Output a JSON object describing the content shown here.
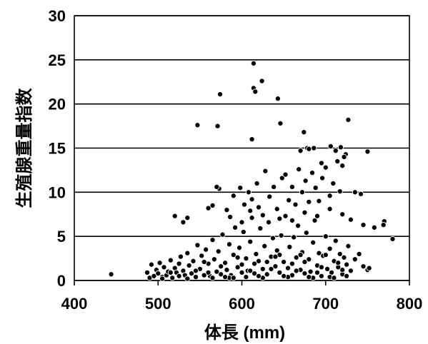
{
  "chart_data": {
    "type": "scatter",
    "title": "",
    "xlabel": "体長 (mm)",
    "ylabel": "生殖腺重量指数",
    "xlim": [
      400,
      800
    ],
    "ylim": [
      0,
      30
    ],
    "x_ticks": [
      "400",
      "500",
      "600",
      "700",
      "800"
    ],
    "y_ticks": [
      "0",
      "5",
      "10",
      "15",
      "20",
      "25",
      "30"
    ],
    "grid": "horizontal",
    "legend": "none",
    "marker_color": "#000000",
    "series": [
      {
        "points": [
          [
            444,
            0.7
          ],
          [
            487,
            0.9
          ],
          [
            490,
            0.3
          ],
          [
            492,
            1.8
          ],
          [
            495,
            0.5
          ],
          [
            498,
            1.2
          ],
          [
            500,
            0.8
          ],
          [
            502,
            2.0
          ],
          [
            505,
            0.4
          ],
          [
            507,
            1.5
          ],
          [
            510,
            0.6
          ],
          [
            512,
            1.0
          ],
          [
            515,
            2.3
          ],
          [
            517,
            0.3
          ],
          [
            520,
            1.4
          ],
          [
            522,
            0.9
          ],
          [
            525,
            0.5
          ],
          [
            527,
            2.7
          ],
          [
            530,
            1.1
          ],
          [
            532,
            0.6
          ],
          [
            535,
            3.1
          ],
          [
            537,
            1.7
          ],
          [
            540,
            0.8
          ],
          [
            542,
            2.2
          ],
          [
            545,
            0.4
          ],
          [
            547,
            4.0
          ],
          [
            550,
            1.3
          ],
          [
            552,
            2.8
          ],
          [
            555,
            0.6
          ],
          [
            557,
            3.5
          ],
          [
            560,
            1.9
          ],
          [
            562,
            0.5
          ],
          [
            565,
            4.6
          ],
          [
            567,
            2.4
          ],
          [
            570,
            1.0
          ],
          [
            572,
            3.3
          ],
          [
            575,
            0.7
          ],
          [
            577,
            5.2
          ],
          [
            580,
            2.0
          ],
          [
            582,
            1.2
          ],
          [
            585,
            4.1
          ],
          [
            587,
            0.6
          ],
          [
            590,
            2.9
          ],
          [
            592,
            6.0
          ],
          [
            595,
            1.5
          ],
          [
            597,
            3.7
          ],
          [
            600,
            0.9
          ],
          [
            602,
            5.5
          ],
          [
            605,
            2.5
          ],
          [
            607,
            1.1
          ],
          [
            610,
            4.4
          ],
          [
            612,
            7.1
          ],
          [
            615,
            0.8
          ],
          [
            617,
            3.0
          ],
          [
            620,
            2.2
          ],
          [
            622,
            5.9
          ],
          [
            625,
            1.3
          ],
          [
            627,
            3.9
          ],
          [
            630,
            0.7
          ],
          [
            632,
            6.6
          ],
          [
            635,
            2.7
          ],
          [
            637,
            4.8
          ],
          [
            640,
            1.6
          ],
          [
            642,
            3.4
          ],
          [
            645,
            0.9
          ],
          [
            647,
            5.1
          ],
          [
            650,
            2.1
          ],
          [
            652,
            7.3
          ],
          [
            655,
            1.4
          ],
          [
            657,
            3.8
          ],
          [
            660,
            0.6
          ],
          [
            662,
            4.9
          ],
          [
            665,
            2.6
          ],
          [
            667,
            6.2
          ],
          [
            670,
            1.2
          ],
          [
            672,
            3.2
          ],
          [
            675,
            0.8
          ],
          [
            677,
            5.4
          ],
          [
            680,
            2.4
          ],
          [
            682,
            1.0
          ],
          [
            685,
            4.3
          ],
          [
            687,
            6.8
          ],
          [
            690,
            1.7
          ],
          [
            692,
            3.1
          ],
          [
            695,
            0.5
          ],
          [
            697,
            2.8
          ],
          [
            700,
            5.0
          ],
          [
            702,
            1.3
          ],
          [
            705,
            3.6
          ],
          [
            707,
            0.9
          ],
          [
            710,
            2.2
          ],
          [
            712,
            4.5
          ],
          [
            715,
            1.5
          ],
          [
            717,
            3.0
          ],
          [
            720,
            0.7
          ],
          [
            722,
            2.6
          ],
          [
            725,
            1.8
          ],
          [
            727,
            3.9
          ],
          [
            730,
            1.1
          ],
          [
            735,
            2.4
          ],
          [
            740,
            3.0
          ],
          [
            745,
            1.6
          ],
          [
            750,
            1.2
          ],
          [
            752,
            1.4
          ],
          [
            505,
            0.2
          ],
          [
            515,
            0.9
          ],
          [
            525,
            1.9
          ],
          [
            535,
            0.2
          ],
          [
            545,
            1.1
          ],
          [
            555,
            2.1
          ],
          [
            565,
            0.3
          ],
          [
            575,
            1.6
          ],
          [
            585,
            0.3
          ],
          [
            595,
            2.6
          ],
          [
            605,
            0.4
          ],
          [
            615,
            1.9
          ],
          [
            625,
            0.3
          ],
          [
            635,
            1.3
          ],
          [
            645,
            2.9
          ],
          [
            655,
            0.4
          ],
          [
            665,
            1.1
          ],
          [
            675,
            2.1
          ],
          [
            685,
            0.3
          ],
          [
            695,
            1.5
          ],
          [
            705,
            0.4
          ],
          [
            715,
            2.0
          ],
          [
            725,
            0.5
          ],
          [
            560,
            0.9
          ],
          [
            580,
            0.4
          ],
          [
            600,
            1.8
          ],
          [
            620,
            0.5
          ],
          [
            640,
            2.7
          ],
          [
            660,
            1.9
          ],
          [
            680,
            0.4
          ],
          [
            700,
            2.9
          ],
          [
            720,
            1.2
          ],
          [
            590,
            0.3
          ],
          [
            610,
            1.1
          ],
          [
            630,
            2.1
          ],
          [
            650,
            0.5
          ],
          [
            670,
            2.9
          ],
          [
            690,
            0.9
          ],
          [
            710,
            0.3
          ],
          [
            582,
            8.0
          ],
          [
            590,
            9.6
          ],
          [
            598,
            10.5
          ],
          [
            603,
            8.6
          ],
          [
            608,
            10.0
          ],
          [
            612,
            9.2
          ],
          [
            618,
            11.0
          ],
          [
            620,
            8.3
          ],
          [
            628,
            12.4
          ],
          [
            633,
            9.5
          ],
          [
            638,
            10.6
          ],
          [
            642,
            8.1
          ],
          [
            648,
            11.6
          ],
          [
            652,
            12.0
          ],
          [
            656,
            9.1
          ],
          [
            660,
            10.6
          ],
          [
            664,
            8.6
          ],
          [
            668,
            12.6
          ],
          [
            672,
            10.0
          ],
          [
            676,
            11.3
          ],
          [
            680,
            8.9
          ],
          [
            684,
            12.2
          ],
          [
            688,
            10.5
          ],
          [
            692,
            9.0
          ],
          [
            696,
            11.6
          ],
          [
            700,
            12.8
          ],
          [
            705,
            9.6
          ],
          [
            709,
            11.0
          ],
          [
            714,
            13.5
          ],
          [
            717,
            10.1
          ],
          [
            720,
            13.0
          ],
          [
            724,
            14.3
          ],
          [
            735,
            10.0
          ],
          [
            742,
            9.8
          ],
          [
            565,
            8.5
          ],
          [
            573,
            10.4
          ],
          [
            586,
            7.2
          ],
          [
            600,
            6.6
          ],
          [
            610,
            7.9
          ],
          [
            625,
            7.4
          ],
          [
            645,
            7.0
          ],
          [
            660,
            6.8
          ],
          [
            675,
            7.7
          ],
          [
            690,
            7.3
          ],
          [
            705,
            8.1
          ],
          [
            720,
            7.5
          ],
          [
            730,
            6.9
          ],
          [
            745,
            6.3
          ],
          [
            758,
            6.0
          ],
          [
            520,
            7.3
          ],
          [
            530,
            6.6
          ],
          [
            535,
            7.1
          ],
          [
            560,
            8.2
          ],
          [
            570,
            10.6
          ],
          [
            670,
            14.7
          ],
          [
            686,
            15.0
          ],
          [
            695,
            13.3
          ],
          [
            706,
            15.2
          ],
          [
            712,
            14.7
          ],
          [
            722,
            14.0
          ],
          [
            750,
            14.6
          ],
          [
            727,
            18.2
          ],
          [
            770,
            6.7
          ],
          [
            769,
            6.3
          ],
          [
            780,
            4.7
          ],
          [
            547,
            17.6
          ],
          [
            571,
            17.5
          ],
          [
            574,
            21.1
          ],
          [
            612,
            16.0
          ],
          [
            614,
            21.8
          ],
          [
            616,
            21.4
          ],
          [
            614,
            24.6
          ],
          [
            624,
            22.6
          ],
          [
            643,
            20.6
          ],
          [
            646,
            17.8
          ],
          [
            674,
            16.8
          ],
          [
            678,
            15.0
          ],
          [
            680,
            14.9
          ],
          [
            718,
            15.1
          ]
        ]
      }
    ]
  }
}
